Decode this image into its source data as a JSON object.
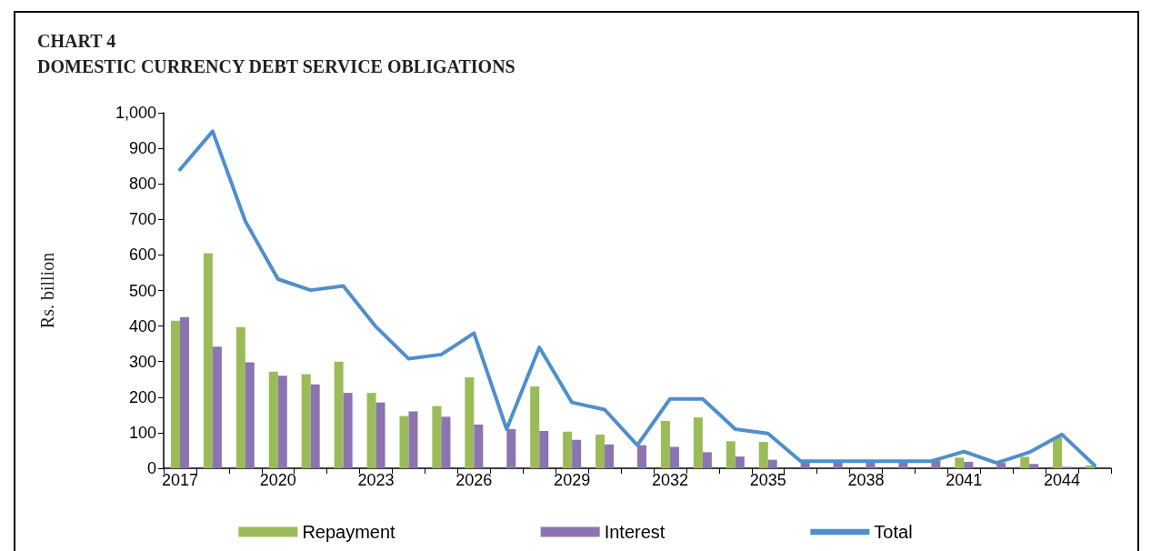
{
  "chart_data": {
    "type": "bar",
    "title": "CHART 4",
    "subtitle": "DOMESTIC CURRENCY DEBT SERVICE OBLIGATIONS",
    "ylabel": "Rs. billion",
    "categories": [
      "2017",
      null,
      null,
      "2020",
      null,
      null,
      "2023",
      null,
      null,
      "2026",
      null,
      null,
      "2029",
      null,
      null,
      "2032",
      null,
      null,
      "2035",
      null,
      null,
      "2038",
      null,
      null,
      "2041",
      null,
      null,
      "2044",
      null
    ],
    "series": [
      {
        "name": "Repayment",
        "color": "#9bbb59",
        "values": [
          415,
          605,
          397,
          272,
          265,
          300,
          212,
          147,
          175,
          256,
          null,
          230,
          103,
          95,
          null,
          133,
          143,
          76,
          74,
          null,
          null,
          null,
          null,
          null,
          30,
          null,
          32,
          88,
          8
        ]
      },
      {
        "name": "Interest",
        "color": "#8b74b0",
        "values": [
          425,
          342,
          298,
          260,
          236,
          212,
          185,
          160,
          145,
          123,
          110,
          105,
          80,
          67,
          65,
          60,
          45,
          33,
          24,
          18,
          18,
          18,
          18,
          22,
          18,
          15,
          12,
          4,
          null
        ]
      },
      {
        "name": "Total",
        "type": "line",
        "color": "#4f8fcb",
        "values": [
          840,
          948,
          695,
          532,
          501,
          513,
          398,
          308,
          320,
          380,
          110,
          340,
          185,
          165,
          65,
          195,
          195,
          110,
          98,
          20,
          20,
          20,
          20,
          20,
          47,
          15,
          45,
          95,
          8
        ]
      }
    ],
    "ylim": [
      0,
      1000
    ],
    "yticks": [
      0,
      100,
      200,
      300,
      400,
      500,
      600,
      700,
      800,
      900,
      {
        "value": 1000,
        "label": "1,000"
      }
    ],
    "grid": false,
    "legend": "bottom",
    "marker": "none",
    "line_style": "solid"
  }
}
